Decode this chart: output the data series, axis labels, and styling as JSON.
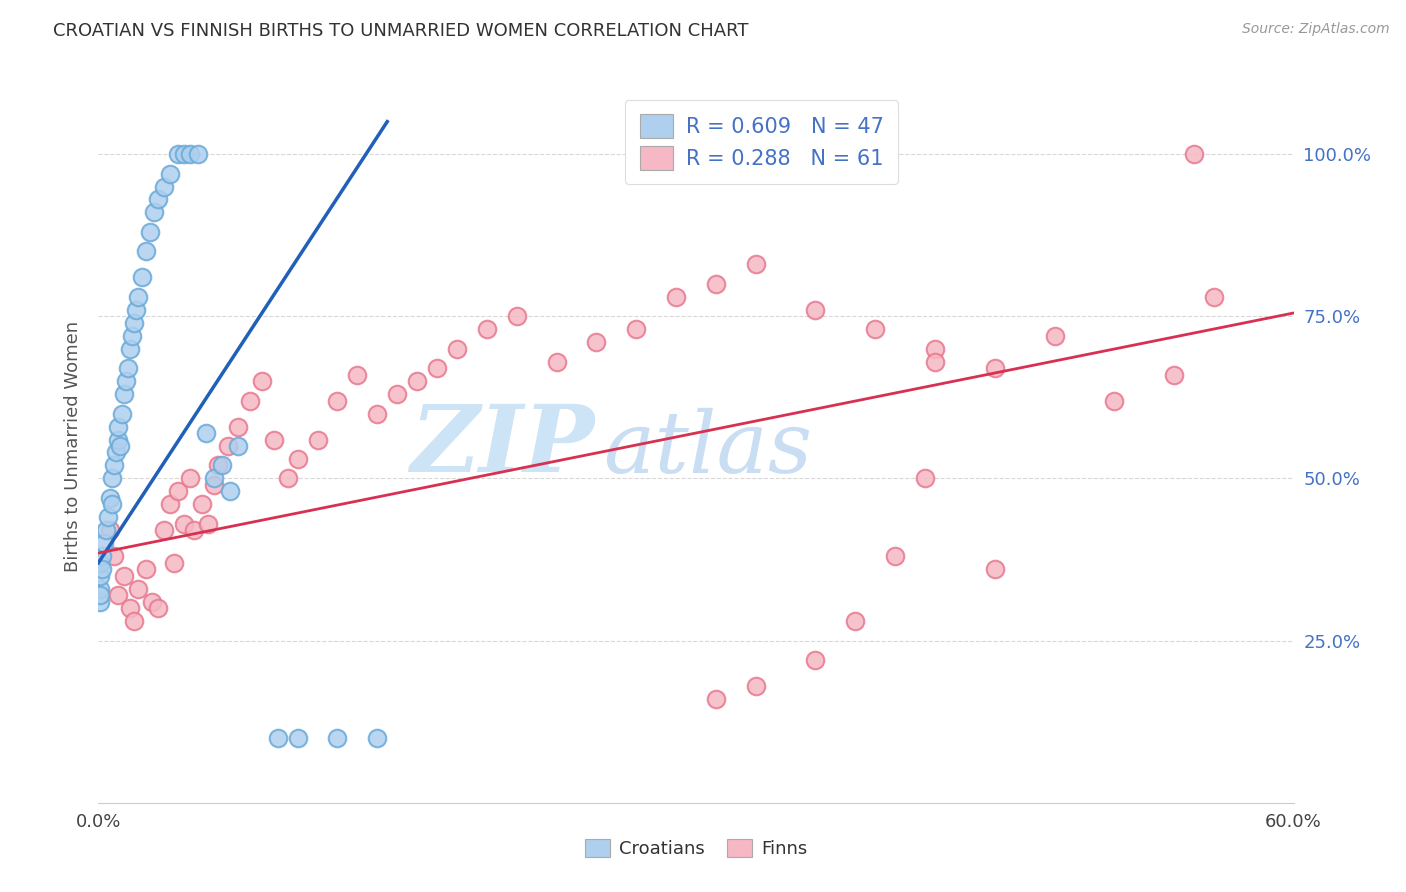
{
  "title": "CROATIAN VS FINNISH BIRTHS TO UNMARRIED WOMEN CORRELATION CHART",
  "source": "Source: ZipAtlas.com",
  "ylabel": "Births to Unmarried Women",
  "legend_r_croatians": "0.609",
  "legend_n_croatians": "47",
  "legend_r_finns": "0.288",
  "legend_n_finns": "61",
  "croatian_color_face": "#aecfee",
  "croatian_color_edge": "#6aaad8",
  "finn_color_face": "#f5b8c4",
  "finn_color_edge": "#e8788e",
  "croatian_line_color": "#2060b8",
  "finn_line_color": "#d83050",
  "xmin": 0.0,
  "xmax": 0.6,
  "ymin": 0.0,
  "ymax": 1.1,
  "ytick_values": [
    0.25,
    0.5,
    0.75,
    1.0
  ],
  "ytick_labels": [
    "25.0%",
    "50.0%",
    "75.0%",
    "100.0%"
  ],
  "xtick_values": [
    0.0,
    0.6
  ],
  "xtick_labels": [
    "0.0%",
    "60.0%"
  ],
  "grid_color": "#d8d8d8",
  "watermark_zip_color": "#c8e0f5",
  "watermark_atlas_color": "#b8d4f0",
  "cr_line_x0": 0.0,
  "cr_line_x1": 0.145,
  "fi_line_x0": 0.0,
  "fi_line_x1": 0.6,
  "cr_line_y0": 0.37,
  "cr_line_y1": 1.05,
  "fi_line_y0": 0.385,
  "fi_line_y1": 0.755,
  "croatians_x": [
    0.001,
    0.001,
    0.001,
    0.001,
    0.001,
    0.002,
    0.002,
    0.003,
    0.004,
    0.005,
    0.006,
    0.007,
    0.007,
    0.008,
    0.009,
    0.01,
    0.01,
    0.011,
    0.012,
    0.013,
    0.014,
    0.015,
    0.016,
    0.017,
    0.018,
    0.019,
    0.02,
    0.022,
    0.024,
    0.026,
    0.028,
    0.03,
    0.033,
    0.036,
    0.04,
    0.043,
    0.046,
    0.05,
    0.054,
    0.058,
    0.062,
    0.066,
    0.07,
    0.09,
    0.1,
    0.12,
    0.14
  ],
  "croatians_y": [
    0.31,
    0.33,
    0.35,
    0.37,
    0.32,
    0.38,
    0.36,
    0.4,
    0.42,
    0.44,
    0.47,
    0.46,
    0.5,
    0.52,
    0.54,
    0.56,
    0.58,
    0.55,
    0.6,
    0.63,
    0.65,
    0.67,
    0.7,
    0.72,
    0.74,
    0.76,
    0.78,
    0.81,
    0.85,
    0.88,
    0.91,
    0.93,
    0.95,
    0.97,
    1.0,
    1.0,
    1.0,
    1.0,
    0.57,
    0.5,
    0.52,
    0.48,
    0.55,
    0.1,
    0.1,
    0.1,
    0.1
  ],
  "finns_x": [
    0.006,
    0.008,
    0.01,
    0.013,
    0.016,
    0.018,
    0.02,
    0.024,
    0.027,
    0.03,
    0.033,
    0.036,
    0.038,
    0.04,
    0.043,
    0.046,
    0.048,
    0.052,
    0.055,
    0.058,
    0.06,
    0.065,
    0.07,
    0.076,
    0.082,
    0.088,
    0.095,
    0.1,
    0.11,
    0.12,
    0.13,
    0.14,
    0.15,
    0.16,
    0.17,
    0.18,
    0.195,
    0.21,
    0.23,
    0.25,
    0.27,
    0.29,
    0.31,
    0.33,
    0.36,
    0.39,
    0.42,
    0.45,
    0.48,
    0.51,
    0.54,
    0.31,
    0.33,
    0.36,
    0.415,
    0.38,
    0.4,
    0.55,
    0.42,
    0.45,
    0.56
  ],
  "finns_y": [
    0.42,
    0.38,
    0.32,
    0.35,
    0.3,
    0.28,
    0.33,
    0.36,
    0.31,
    0.3,
    0.42,
    0.46,
    0.37,
    0.48,
    0.43,
    0.5,
    0.42,
    0.46,
    0.43,
    0.49,
    0.52,
    0.55,
    0.58,
    0.62,
    0.65,
    0.56,
    0.5,
    0.53,
    0.56,
    0.62,
    0.66,
    0.6,
    0.63,
    0.65,
    0.67,
    0.7,
    0.73,
    0.75,
    0.68,
    0.71,
    0.73,
    0.78,
    0.8,
    0.83,
    0.76,
    0.73,
    0.7,
    0.67,
    0.72,
    0.62,
    0.66,
    0.16,
    0.18,
    0.22,
    0.5,
    0.28,
    0.38,
    1.0,
    0.68,
    0.36,
    0.78
  ]
}
